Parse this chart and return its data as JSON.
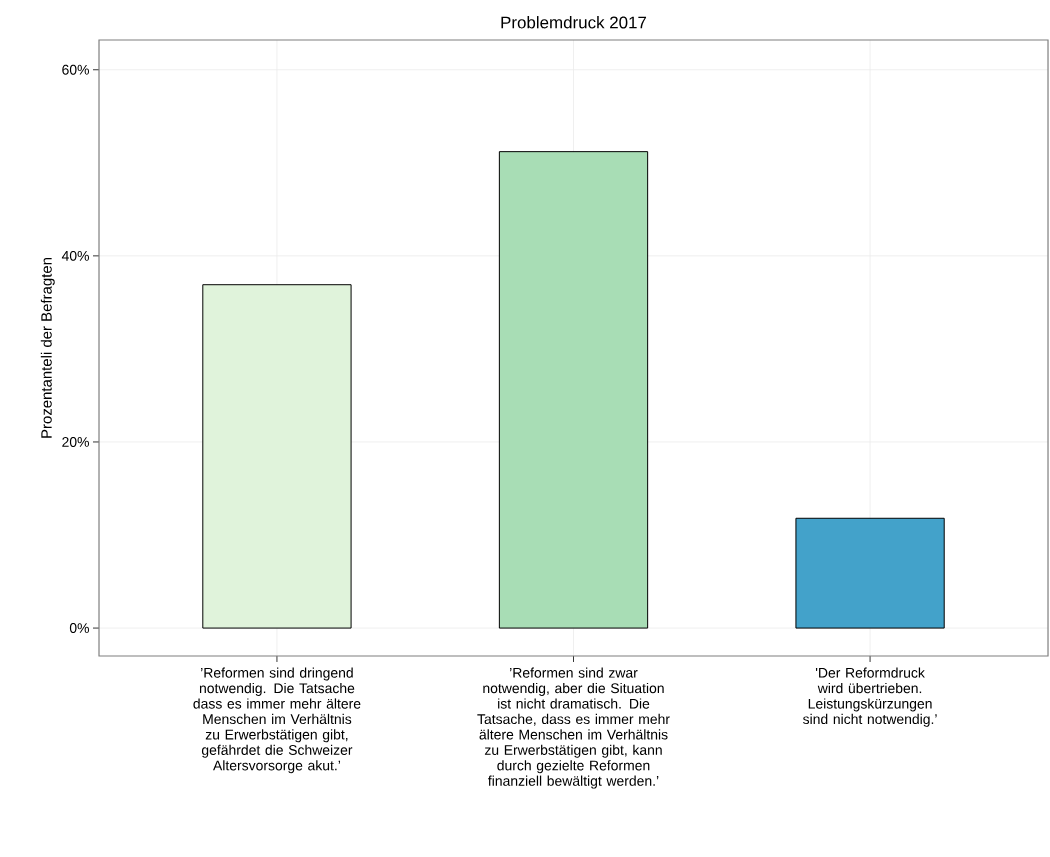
{
  "chart_data": {
    "type": "bar",
    "title": "Problemdruck 2017",
    "ylabel": "Prozentanteli der Befragten",
    "categories": [
      "’Reformen sind dringend notwendig. Die Tatsache dass es immer mehr ältere Menschen im Verhältnis zu Erwerbstätigen gibt, gefährdet die Schweizer Altersvorsorge akut.’",
      "’Reformen sind zwar notwendig, aber die Situation ist nicht dramatisch. Die Tatsache, dass es immer mehr ältere Menschen im Verhältnis zu Erwerbstätigen gibt, kann durch gezielte Reformen finanziell bewältigt werden.’",
      "'Der Reformdruck wird übertrieben. Leistungskürzungen sind nicht notwendig.’"
    ],
    "values": [
      36.9,
      51.2,
      11.8
    ],
    "colors": [
      "#e0f3db",
      "#a8ddb5",
      "#43a2ca"
    ],
    "ylim": [
      -3,
      63.2
    ],
    "yticks": [
      {
        "value": 0,
        "label": "0%"
      },
      {
        "value": 20,
        "label": "20%"
      },
      {
        "value": 40,
        "label": "40%"
      },
      {
        "value": 60,
        "label": "60%"
      }
    ],
    "grid": true
  }
}
